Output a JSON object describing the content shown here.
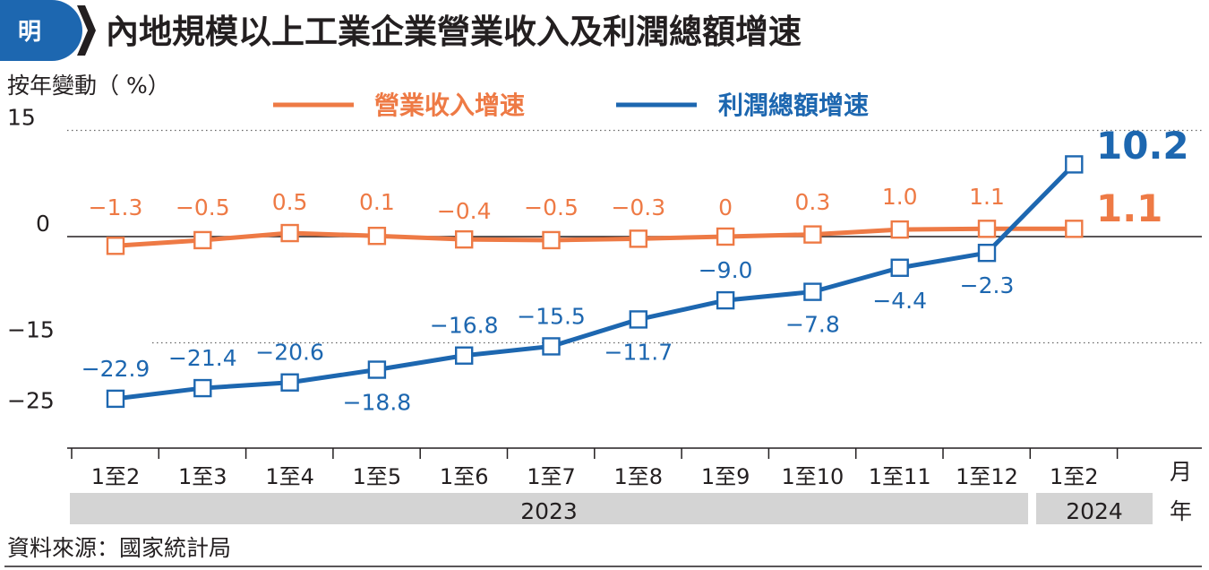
{
  "header": {
    "logo_char": "明",
    "title": "內地規模以上工業企業營業收入及利潤總額增速"
  },
  "source": "資料來源：國家統計局",
  "colors": {
    "revenue": "#ee7a45",
    "profit": "#1d67b0",
    "logo": "#1d67b0",
    "year_band": "#d4d4d4"
  },
  "chart_data": {
    "type": "line",
    "ylabel": "按年變動（ %）",
    "xlabel_unit": "月",
    "year_unit": "年",
    "ylim": [
      -28,
      18
    ],
    "yticks": [
      15,
      0,
      -15,
      -25
    ],
    "ytick_labels": [
      "15",
      "0",
      "−15",
      "−25"
    ],
    "gridlines": [
      15,
      -15
    ],
    "categories": [
      "1至2",
      "1至3",
      "1至4",
      "1至5",
      "1至6",
      "1至7",
      "1至8",
      "1至9",
      "1至10",
      "1至11",
      "1至12",
      "1至2"
    ],
    "year_groups": [
      {
        "label": "2023",
        "start": 0,
        "end": 10
      },
      {
        "label": "2024",
        "start": 11,
        "end": 11
      }
    ],
    "series": [
      {
        "name": "營業收入增速",
        "values": [
          -1.3,
          -0.5,
          0.5,
          0.1,
          -0.4,
          -0.5,
          -0.3,
          0,
          0.3,
          1.0,
          1.1,
          1.1
        ],
        "labels": [
          "−1.3",
          "−0.5",
          "0.5",
          "0.1",
          "−0.4",
          "−0.5",
          "−0.3",
          "0",
          "0.3",
          "1.0",
          "1.1",
          "1.1"
        ]
      },
      {
        "name": "利潤總額增速",
        "values": [
          -22.9,
          -21.4,
          -20.6,
          -18.8,
          -16.8,
          -15.5,
          -11.7,
          -9.0,
          -7.8,
          -4.4,
          -2.3,
          10.2
        ],
        "labels": [
          "−22.9",
          "−21.4",
          "−20.6",
          "−18.8",
          "−16.8",
          "−15.5",
          "−11.7",
          "−9.0",
          "−7.8",
          "−4.4",
          "−2.3",
          "10.2"
        ]
      }
    ]
  }
}
